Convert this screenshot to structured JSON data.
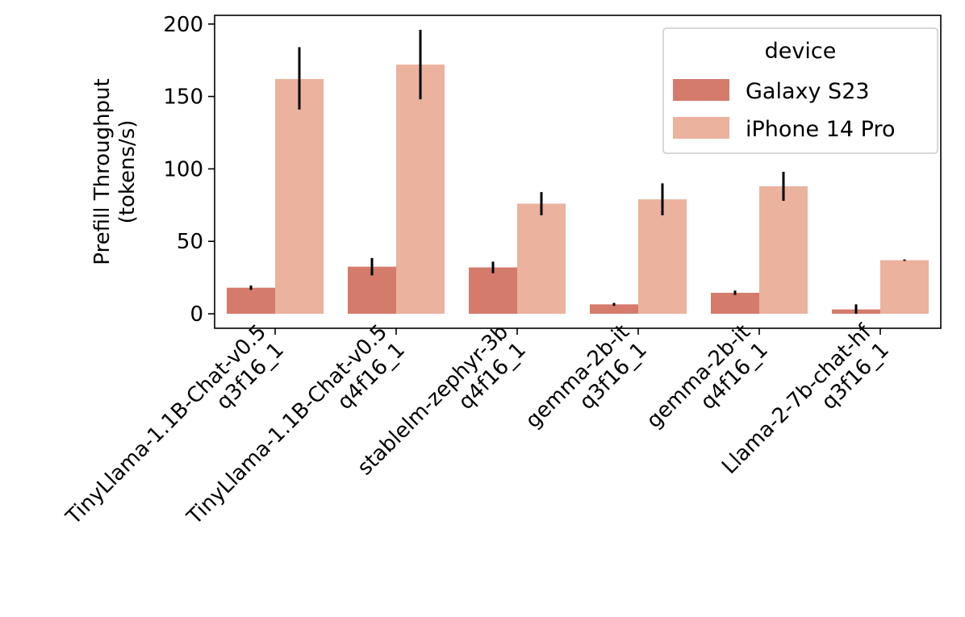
{
  "chart_data": {
    "type": "bar",
    "title": "",
    "xlabel": "",
    "ylabel": "Prefill Throughput (tokens/s)",
    "ylabel_lines": [
      "Prefill Throughput",
      "(tokens/s)"
    ],
    "ylim": [
      -10,
      206
    ],
    "yticks": [
      0,
      50,
      100,
      150,
      200
    ],
    "grid": false,
    "legend": {
      "title": "device",
      "placement": "top-right"
    },
    "categories": [
      [
        "TinyLlama-1.1B-Chat-v0.5",
        "q3f16_1"
      ],
      [
        "TinyLlama-1.1B-Chat-v0.5",
        "q4f16_1"
      ],
      [
        "stablelm-zephyr-3b",
        "q4f16_1"
      ],
      [
        "gemma-2b-it",
        "q3f16_1"
      ],
      [
        "gemma-2b-it",
        "q4f16_1"
      ],
      [
        "Llama-2-7b-chat-hf",
        "q3f16_1"
      ]
    ],
    "series": [
      {
        "name": "Galaxy S23",
        "color": "#d47b6b",
        "values": [
          18,
          32.5,
          32,
          6.5,
          14.5,
          3
        ],
        "err_low": [
          16.5,
          26.5,
          28,
          5.5,
          13,
          0
        ],
        "err_high": [
          19.5,
          38.5,
          36,
          7.5,
          16,
          6.5
        ]
      },
      {
        "name": "iPhone 14 Pro",
        "color": "#ebb29d",
        "values": [
          162,
          172,
          76,
          79,
          88,
          37
        ],
        "err_low": [
          141,
          148,
          68,
          68,
          78,
          36.5
        ],
        "err_high": [
          184,
          196,
          84,
          90,
          98,
          37.5
        ]
      }
    ]
  }
}
